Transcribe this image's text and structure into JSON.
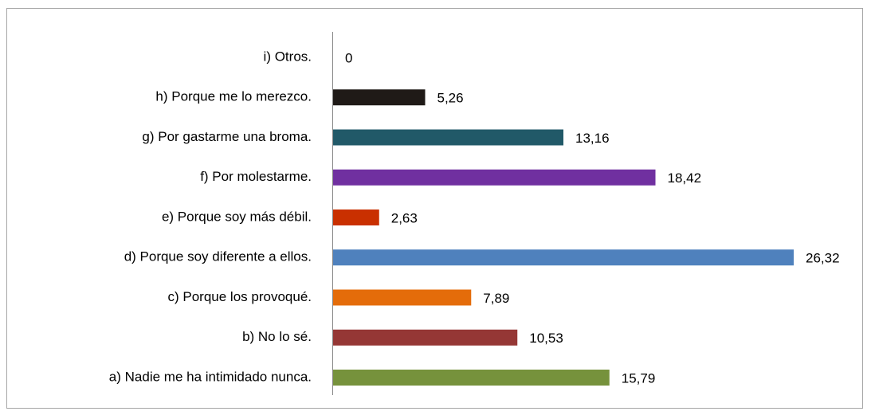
{
  "chart_data": {
    "type": "bar",
    "orientation": "horizontal",
    "categories": [
      "a) Nadie me ha intimidado nunca.",
      "b) No lo sé.",
      "c) Porque los provoqué.",
      "d) Porque soy diferente a ellos.",
      "e) Porque soy más débil.",
      "f) Por molestarme.",
      "g) Por gastarme una broma.",
      "h) Porque me lo merezco.",
      "i) Otros."
    ],
    "values": [
      15.79,
      10.53,
      7.89,
      26.32,
      2.63,
      18.42,
      13.16,
      5.26,
      0
    ],
    "value_labels": [
      "15,79",
      "10,53",
      "7,89",
      "26,32",
      "2,63",
      "18,42",
      "13,16",
      "5,26",
      "0"
    ],
    "colors": [
      "#76923c",
      "#953735",
      "#e46c0a",
      "#4f81bd",
      "#c93000",
      "#7030a0",
      "#215968",
      "#1f1a17",
      "#7f7f7f"
    ]
  }
}
